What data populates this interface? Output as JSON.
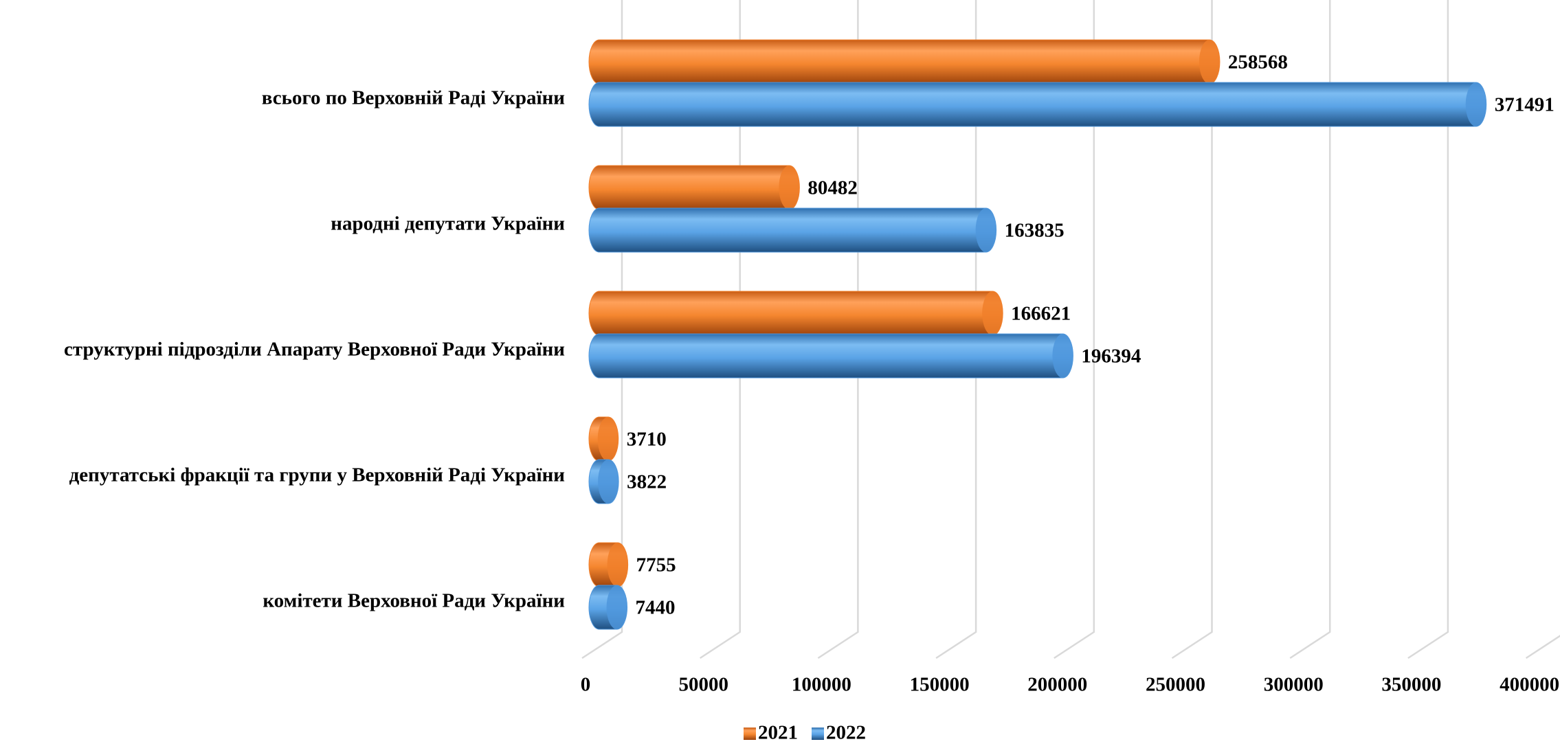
{
  "chart_data": {
    "type": "bar",
    "orientation": "horizontal",
    "categories": [
      "всього по Верховній Раді України",
      "народні депутати України",
      "структурні підрозділи Апарату Верховної Ради України",
      "депутатські фракції та групи у Верховній Раді України",
      "комітети Верховної Ради України"
    ],
    "series": [
      {
        "name": "2021",
        "color": "#f07f2a",
        "values": [
          258568,
          80482,
          166621,
          3710,
          7755
        ]
      },
      {
        "name": "2022",
        "color": "#4f97dc",
        "values": [
          371491,
          163835,
          196394,
          3822,
          7440
        ]
      }
    ],
    "xlim": [
      0,
      400000
    ],
    "xticks": [
      0,
      50000,
      100000,
      150000,
      200000,
      250000,
      300000,
      350000,
      400000
    ],
    "grid": true,
    "legend": "bottom"
  }
}
